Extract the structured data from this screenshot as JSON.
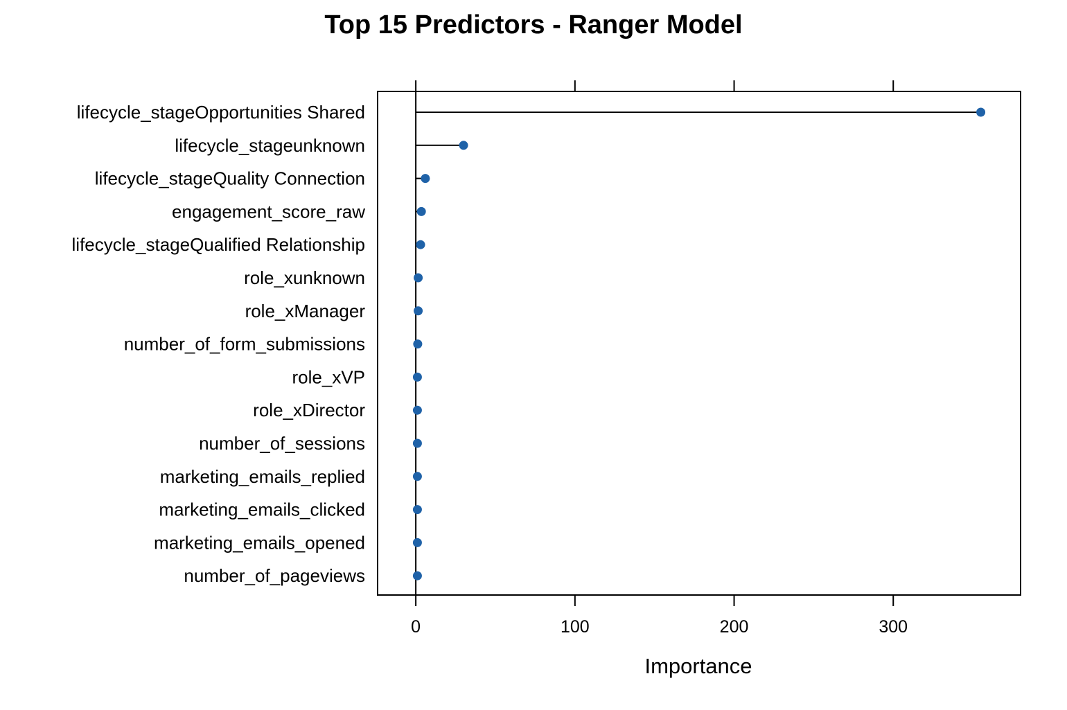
{
  "chart_data": {
    "type": "dotplot",
    "title": "Top 15 Predictors - Ranger Model",
    "xlabel": "Importance",
    "ylabel": "",
    "xlim": [
      -24,
      380
    ],
    "xticks": [
      0,
      100,
      200,
      300
    ],
    "grid": false,
    "legend": "none",
    "point_color": "#1f62a8",
    "categories": [
      "lifecycle_stageOpportunities Shared",
      "lifecycle_stageunknown",
      "lifecycle_stageQuality Connection",
      "engagement_score_raw",
      "lifecycle_stageQualified Relationship",
      "role_xunknown",
      "role_xManager",
      "number_of_form_submissions",
      "role_xVP",
      "role_xDirector",
      "number_of_sessions",
      "marketing_emails_replied",
      "marketing_emails_clicked",
      "marketing_emails_opened",
      "number_of_pageviews"
    ],
    "values": [
      355,
      30,
      6,
      3.5,
      3,
      1.5,
      1.5,
      1.2,
      1,
      1,
      1,
      1,
      1,
      1,
      1
    ]
  }
}
